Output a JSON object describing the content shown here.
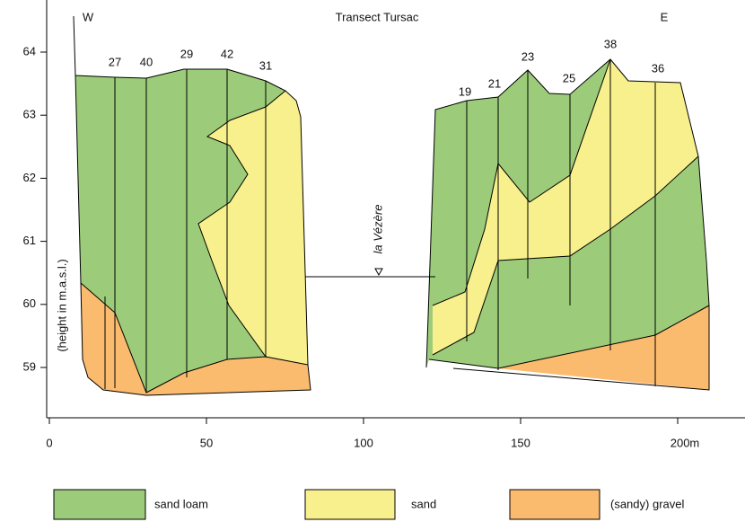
{
  "title": "Transect Tursac",
  "west": "W",
  "east": "E",
  "y_axis_label": "(height in m.a.s.l.)",
  "yticks": [
    59,
    60,
    61,
    62,
    63,
    64
  ],
  "xticks": [
    0,
    50,
    100,
    150,
    {
      "value": 200,
      "label": "200m"
    }
  ],
  "boreholes_left": [
    "27",
    "40",
    "29",
    "42",
    "31"
  ],
  "boreholes_right": [
    "19",
    "21",
    "23",
    "25",
    "38",
    "36"
  ],
  "river": "la Vézère",
  "legend": [
    "sand loam",
    "sand",
    "(sandy) gravel"
  ]
}
